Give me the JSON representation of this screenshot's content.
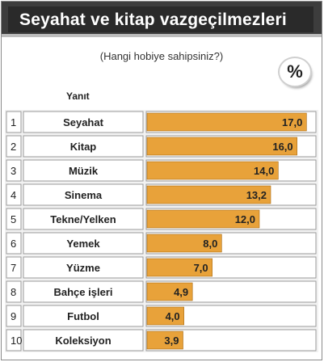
{
  "chart_data": {
    "type": "bar",
    "title": "Seyahat ve kitap vazgeçilmezleri",
    "subtitle": "(Hangi hobiye sahipsiniz?)",
    "unit_badge": "%",
    "column_header": "Yanıt",
    "ranks": [
      "1",
      "2",
      "3",
      "4",
      "5",
      "6",
      "7",
      "8",
      "9",
      "10"
    ],
    "categories": [
      "Seyahat",
      "Kitap",
      "Müzik",
      "Sinema",
      "Tekne/Yelken",
      "Yemek",
      "Yüzme",
      "Bahçe işleri",
      "Futbol",
      "Koleksiyon"
    ],
    "values": [
      17.0,
      16.0,
      14.0,
      13.2,
      12.0,
      8.0,
      7.0,
      4.9,
      4.0,
      3.9
    ],
    "value_labels": [
      "17,0",
      "16,0",
      "14,0",
      "13,2",
      "12,0",
      "8,0",
      "7,0",
      "4,9",
      "4,0",
      "3,9"
    ],
    "xlim": [
      0,
      18
    ],
    "bar_color": "#e8a23a",
    "grid": false,
    "legend": "none"
  }
}
